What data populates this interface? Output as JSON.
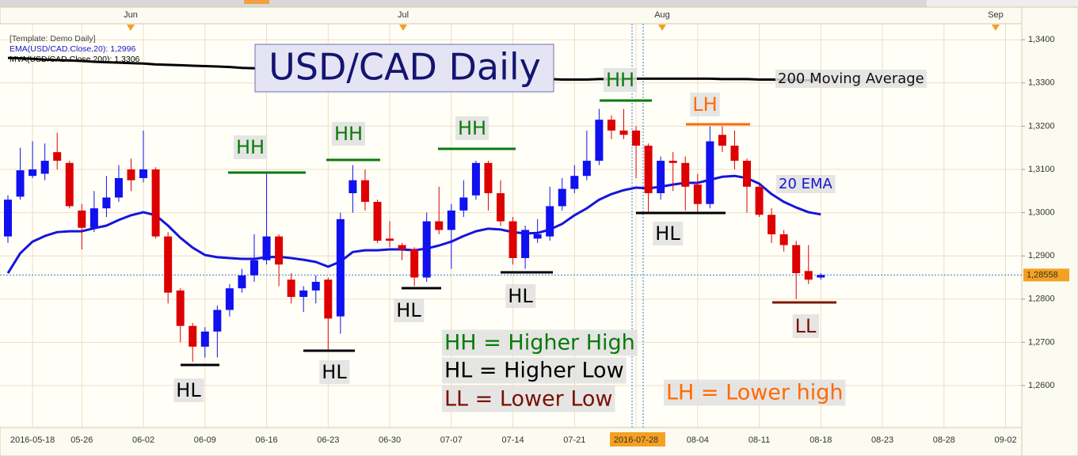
{
  "chart_data": {
    "type": "candlestick",
    "title": "USD/CAD Daily",
    "template": "[Template: Demo Daily]",
    "months": [
      "Jun",
      "Jul",
      "Aug",
      "Sep"
    ],
    "categories": [
      null,
      null,
      "2016-05-18",
      null,
      null,
      null,
      "05-26",
      null,
      null,
      null,
      null,
      "06-02",
      null,
      null,
      null,
      null,
      "06-09",
      null,
      null,
      null,
      null,
      "06-16",
      null,
      null,
      null,
      null,
      "06-23",
      null,
      null,
      null,
      null,
      "06-30",
      null,
      null,
      null,
      null,
      "07-07",
      null,
      null,
      null,
      null,
      "07-14",
      null,
      null,
      null,
      null,
      "07-21",
      null,
      null,
      null,
      null,
      "2016-07-28",
      null,
      null,
      null,
      null,
      "08-04",
      null,
      null,
      null,
      null,
      "08-11",
      null,
      null,
      null,
      null,
      "08-18",
      null,
      null,
      null,
      null,
      "08-23",
      null,
      null,
      null,
      null,
      "08-28",
      null,
      null,
      null,
      null,
      "09-02"
    ],
    "candles": {
      "up_color": "#1010f0",
      "down_color": "#dd0000",
      "open": [
        1.2945,
        1.3037,
        1.3085,
        1.309,
        1.314,
        1.3115,
        1.3005,
        1.2965,
        1.301,
        1.3035,
        1.31,
        1.308,
        1.31,
        1.2945,
        1.282,
        1.2738,
        1.269,
        1.2725,
        1.2775,
        1.2825,
        1.2855,
        1.289,
        1.2945,
        1.2845,
        1.2805,
        1.282,
        1.2845,
        1.276,
        1.3045,
        1.3075,
        1.3025,
        1.294,
        1.2925,
        1.2915,
        1.285,
        1.298,
        1.296,
        1.3005,
        1.304,
        1.3115,
        1.3045,
        1.298,
        1.2895,
        1.294,
        1.2945,
        1.3015,
        1.3055,
        1.3085,
        1.312,
        1.3215,
        1.319,
        1.319,
        1.3155,
        1.3045,
        1.312,
        1.3115,
        1.3065,
        1.302,
        1.318,
        1.3155,
        1.312,
        1.306,
        1.2995,
        1.295,
        1.2925,
        1.2865,
        1.285,
        null,
        null,
        null,
        null,
        null,
        null,
        null,
        null,
        null,
        null,
        null,
        null,
        null,
        null,
        null
      ],
      "high": [
        1.304,
        1.315,
        1.3165,
        1.316,
        1.3185,
        1.312,
        1.302,
        1.305,
        1.3085,
        1.311,
        1.3125,
        1.319,
        1.3105,
        1.2955,
        1.2825,
        1.2745,
        1.2735,
        1.2785,
        1.2835,
        1.287,
        1.295,
        1.3095,
        1.295,
        1.286,
        1.283,
        1.2855,
        1.285,
        1.3,
        1.311,
        1.31,
        1.303,
        1.298,
        1.293,
        1.292,
        1.3,
        1.306,
        1.302,
        1.3075,
        1.312,
        1.312,
        1.3075,
        1.299,
        1.297,
        1.2985,
        1.306,
        1.308,
        1.311,
        1.319,
        1.324,
        1.3225,
        1.324,
        1.32,
        1.316,
        1.313,
        1.314,
        1.313,
        1.309,
        1.32,
        1.32,
        1.319,
        1.3125,
        1.3065,
        1.301,
        1.296,
        1.2935,
        1.2925,
        1.286,
        null,
        null,
        null,
        null,
        null,
        null,
        null,
        null,
        null,
        null,
        null,
        null,
        null,
        null,
        null
      ],
      "low": [
        1.293,
        1.303,
        1.308,
        1.3075,
        1.31,
        1.301,
        1.2915,
        1.2955,
        1.299,
        1.3025,
        1.305,
        1.307,
        1.294,
        1.279,
        1.27,
        1.2655,
        1.2665,
        1.2665,
        1.276,
        1.2815,
        1.284,
        1.288,
        1.283,
        1.279,
        1.277,
        1.279,
        1.268,
        1.272,
        1.3,
        1.3005,
        1.293,
        1.292,
        1.289,
        1.283,
        1.284,
        1.295,
        1.287,
        1.299,
        1.303,
        1.3005,
        1.297,
        1.288,
        1.287,
        1.293,
        1.2935,
        1.3005,
        1.3045,
        1.3075,
        1.311,
        1.317,
        1.317,
        1.308,
        1.3,
        1.303,
        1.305,
        1.3005,
        1.3,
        1.301,
        1.314,
        1.31,
        1.3,
        1.299,
        1.293,
        1.291,
        1.28,
        1.2835,
        1.2845,
        null,
        null,
        null,
        null,
        null,
        null,
        null,
        null,
        null,
        null,
        null,
        null,
        null,
        null,
        null
      ],
      "close": [
        1.303,
        1.3098,
        1.31,
        1.312,
        1.312,
        1.3015,
        1.2965,
        1.301,
        1.3035,
        1.308,
        1.3075,
        1.31,
        1.2945,
        1.2815,
        1.2738,
        1.269,
        1.2725,
        1.2775,
        1.2825,
        1.2855,
        1.289,
        1.2945,
        1.288,
        1.2805,
        1.282,
        1.284,
        1.2755,
        1.2985,
        1.3075,
        1.3025,
        1.2935,
        1.2935,
        1.2915,
        1.285,
        1.298,
        1.296,
        1.3005,
        1.3035,
        1.3115,
        1.3045,
        1.298,
        1.2895,
        1.296,
        1.295,
        1.3015,
        1.3055,
        1.3085,
        1.312,
        1.3215,
        1.319,
        1.318,
        1.3155,
        1.3045,
        1.312,
        1.3115,
        1.306,
        1.302,
        1.3165,
        1.3155,
        1.312,
        1.306,
        1.2995,
        1.295,
        1.2925,
        1.286,
        1.2845,
        1.2856,
        null,
        null,
        null,
        null,
        null,
        null,
        null,
        null,
        null,
        null,
        null,
        null,
        null,
        null,
        null
      ]
    },
    "lines": [
      {
        "name": "EMA(USD/CAD.Close,20): 1,2996",
        "color": "#1515dd",
        "width": 3,
        "values": [
          1.286,
          1.2906,
          1.2933,
          1.2946,
          1.2955,
          1.2957,
          1.2957,
          1.2964,
          1.297,
          1.2983,
          1.2994,
          1.3001,
          1.2994,
          1.297,
          1.2942,
          1.2919,
          1.2902,
          1.2897,
          1.2895,
          1.2893,
          1.2893,
          1.2897,
          1.2898,
          1.2895,
          1.2891,
          1.2886,
          1.2875,
          1.2887,
          1.2909,
          1.2913,
          1.2913,
          1.2915,
          1.2915,
          1.2913,
          1.2917,
          1.2924,
          1.2933,
          1.2946,
          1.2957,
          1.2963,
          1.2961,
          1.2955,
          1.2952,
          1.2953,
          1.2961,
          1.2974,
          1.2994,
          1.301,
          1.303,
          1.3043,
          1.3052,
          1.3058,
          1.3056,
          1.306,
          1.3065,
          1.3069,
          1.3069,
          1.3076,
          1.3083,
          1.3085,
          1.308,
          1.3067,
          1.3043,
          1.3025,
          1.3012,
          1.3001,
          1.2996,
          null,
          null,
          null,
          null,
          null,
          null,
          null,
          null,
          null,
          null,
          null,
          null,
          null,
          null,
          null
        ]
      },
      {
        "name": "MVA(USD/CAD.Close,200): 1,3306",
        "color": "#000000",
        "width": 3,
        "values": [
          1.3358,
          1.3357,
          1.3356,
          1.3354,
          1.3353,
          1.3352,
          1.3351,
          1.3349,
          1.3348,
          1.3347,
          1.3346,
          1.3345,
          1.3343,
          1.3342,
          1.3341,
          1.334,
          1.3339,
          1.3338,
          1.3337,
          1.3335,
          1.3334,
          1.3333,
          1.3332,
          1.3331,
          1.333,
          1.3329,
          1.3328,
          1.3327,
          1.3326,
          1.3325,
          1.3323,
          1.3322,
          1.3321,
          1.332,
          1.3319,
          1.3318,
          1.3317,
          1.3316,
          1.3315,
          1.3314,
          1.3313,
          1.3312,
          1.3311,
          1.331,
          1.3309,
          1.3308,
          1.3308,
          1.3308,
          1.3309,
          1.3309,
          1.3309,
          1.331,
          1.331,
          1.331,
          1.331,
          1.331,
          1.331,
          1.331,
          1.3309,
          1.3309,
          1.3309,
          1.3308,
          1.3308,
          1.3307,
          1.3307,
          1.3306,
          1.3306,
          null,
          null,
          null,
          null,
          null,
          null,
          null,
          null,
          null,
          null,
          null,
          null,
          null,
          null,
          null
        ]
      }
    ],
    "ylim": [
      1.2503,
      1.3437
    ],
    "yticks": [
      {
        "value": 1.26,
        "label": "1,2600"
      },
      {
        "value": 1.27,
        "label": "1,2700"
      },
      {
        "value": 1.28,
        "label": "1,2800"
      },
      {
        "value": 1.29,
        "label": "1,2900"
      },
      {
        "value": 1.3,
        "label": "1,3000"
      },
      {
        "value": 1.31,
        "label": "1,3100"
      },
      {
        "value": 1.32,
        "label": "1,3200"
      },
      {
        "value": 1.33,
        "label": "1,3300"
      },
      {
        "value": 1.34,
        "label": "1,3400"
      }
    ],
    "last_price": {
      "value": 1.28558,
      "label": "1,28558"
    },
    "grid": true,
    "annotations": [
      "200 Moving Average",
      "20 EMA",
      "HH",
      "HH",
      "HH",
      "HH",
      "LH",
      "HL",
      "HL",
      "HL",
      "HL",
      "HL",
      "LL",
      "HH = Higher High",
      "HL = Higher Low",
      "LL = Lower Low",
      "LH = Lower high"
    ]
  }
}
